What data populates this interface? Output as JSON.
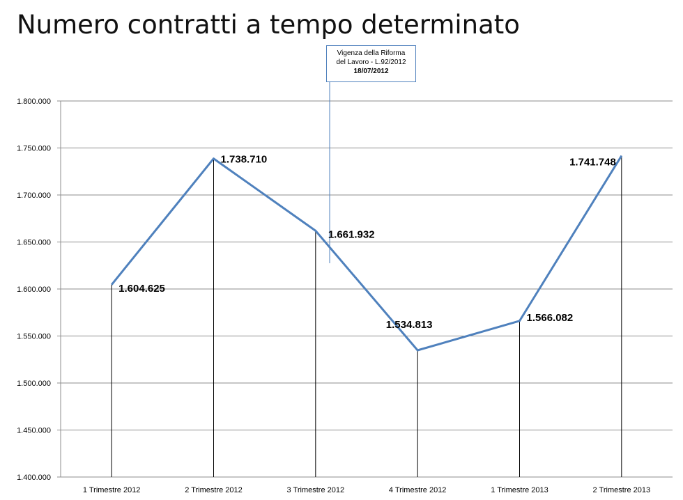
{
  "title": "Numero contratti a tempo determinato",
  "annotation": {
    "line1": "Vigenza della Riforma",
    "line2": "del Lavoro - L.92/2012",
    "date": "18/07/2012"
  },
  "colors": {
    "series": "#4f81bd",
    "grid": "#8c8c8c",
    "drop_line": "#000000",
    "annotation_border": "#4f81bd"
  },
  "chart_data": {
    "type": "line",
    "title": "Numero contratti a tempo determinato",
    "categories": [
      "1 Trimestre 2012",
      "2 Trimestre 2012",
      "3 Trimestre 2012",
      "4 Trimestre 2012",
      "1 Trimestre 2013",
      "2 Trimestre 2013"
    ],
    "values": [
      1604625,
      1738710,
      1661932,
      1534813,
      1566082,
      1741748
    ],
    "data_labels": [
      "1.604.625",
      "1.738.710",
      "1.661.932",
      "1.534.813",
      "1.566.082",
      "1.741.748"
    ],
    "ylim": [
      1400000,
      1800000
    ],
    "yticks": [
      1400000,
      1450000,
      1500000,
      1550000,
      1600000,
      1650000,
      1700000,
      1750000,
      1800000
    ],
    "ytick_labels": [
      "1.400.000",
      "1.450.000",
      "1.500.000",
      "1.550.000",
      "1.600.000",
      "1.650.000",
      "1.700.000",
      "1.750.000",
      "1.800.000"
    ],
    "grid": true,
    "drop_lines": true,
    "legend": "none",
    "annotation_between": [
      2,
      3
    ]
  }
}
